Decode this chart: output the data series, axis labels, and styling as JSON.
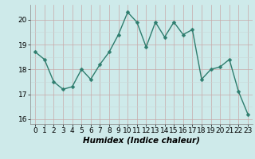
{
  "x": [
    0,
    1,
    2,
    3,
    4,
    5,
    6,
    7,
    8,
    9,
    10,
    11,
    12,
    13,
    14,
    15,
    16,
    17,
    18,
    19,
    20,
    21,
    22,
    23
  ],
  "y": [
    18.7,
    18.4,
    17.5,
    17.2,
    17.3,
    18.0,
    17.6,
    18.2,
    18.7,
    19.4,
    20.3,
    19.9,
    18.9,
    19.9,
    19.3,
    19.9,
    19.4,
    19.6,
    17.6,
    18.0,
    18.1,
    18.4,
    17.1,
    16.2
  ],
  "line_color": "#2e7d6e",
  "marker": "D",
  "marker_size": 2.5,
  "bg_color": "#ceeaea",
  "grid_color_major": "#b8d0d0",
  "grid_color_minor": "#d4e8e8",
  "axis_label": "Humidex (Indice chaleur)",
  "xlabel_fontsize": 7.5,
  "tick_fontsize": 6.5,
  "ylim": [
    15.8,
    20.6
  ],
  "xlim": [
    -0.5,
    23.5
  ],
  "yticks": [
    16,
    17,
    18,
    19,
    20
  ],
  "xticks": [
    0,
    1,
    2,
    3,
    4,
    5,
    6,
    7,
    8,
    9,
    10,
    11,
    12,
    13,
    14,
    15,
    16,
    17,
    18,
    19,
    20,
    21,
    22,
    23
  ]
}
